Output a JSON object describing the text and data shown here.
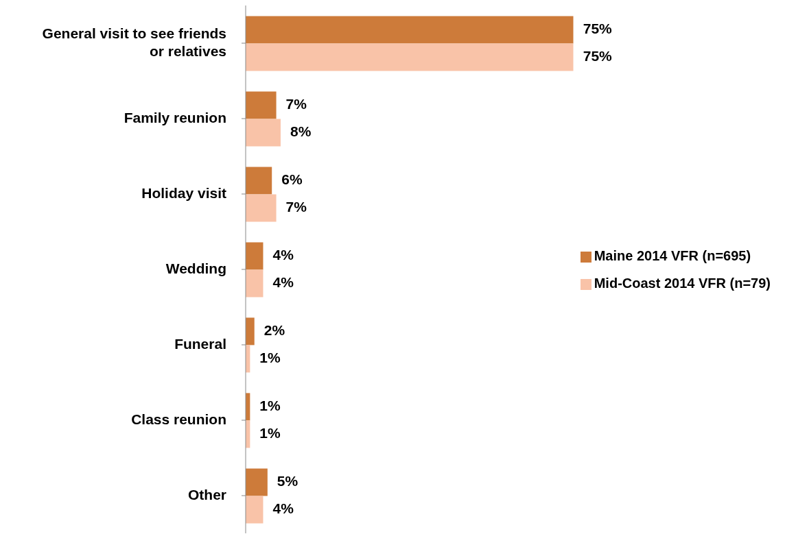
{
  "chart_data": {
    "type": "bar",
    "orientation": "horizontal",
    "categories": [
      "General visit to see friends or relatives",
      "Family reunion",
      "Holiday visit",
      "Wedding",
      "Funeral",
      "Class reunion",
      "Other"
    ],
    "series": [
      {
        "name": "Maine 2014 VFR (n=695)",
        "color": "#cd7b3a",
        "values": [
          75,
          7,
          6,
          4,
          2,
          1,
          5
        ],
        "value_labels": [
          "75%",
          "7%",
          "6%",
          "4%",
          "2%",
          "1%",
          "5%"
        ]
      },
      {
        "name": "Mid-Coast 2014 VFR (n=79)",
        "color": "#f9c3a8",
        "values": [
          75,
          8,
          7,
          4,
          1,
          1,
          4
        ],
        "value_labels": [
          "75%",
          "8%",
          "7%",
          "4%",
          "1%",
          "1%",
          "4%"
        ]
      }
    ],
    "grid": false,
    "legend": "right"
  }
}
